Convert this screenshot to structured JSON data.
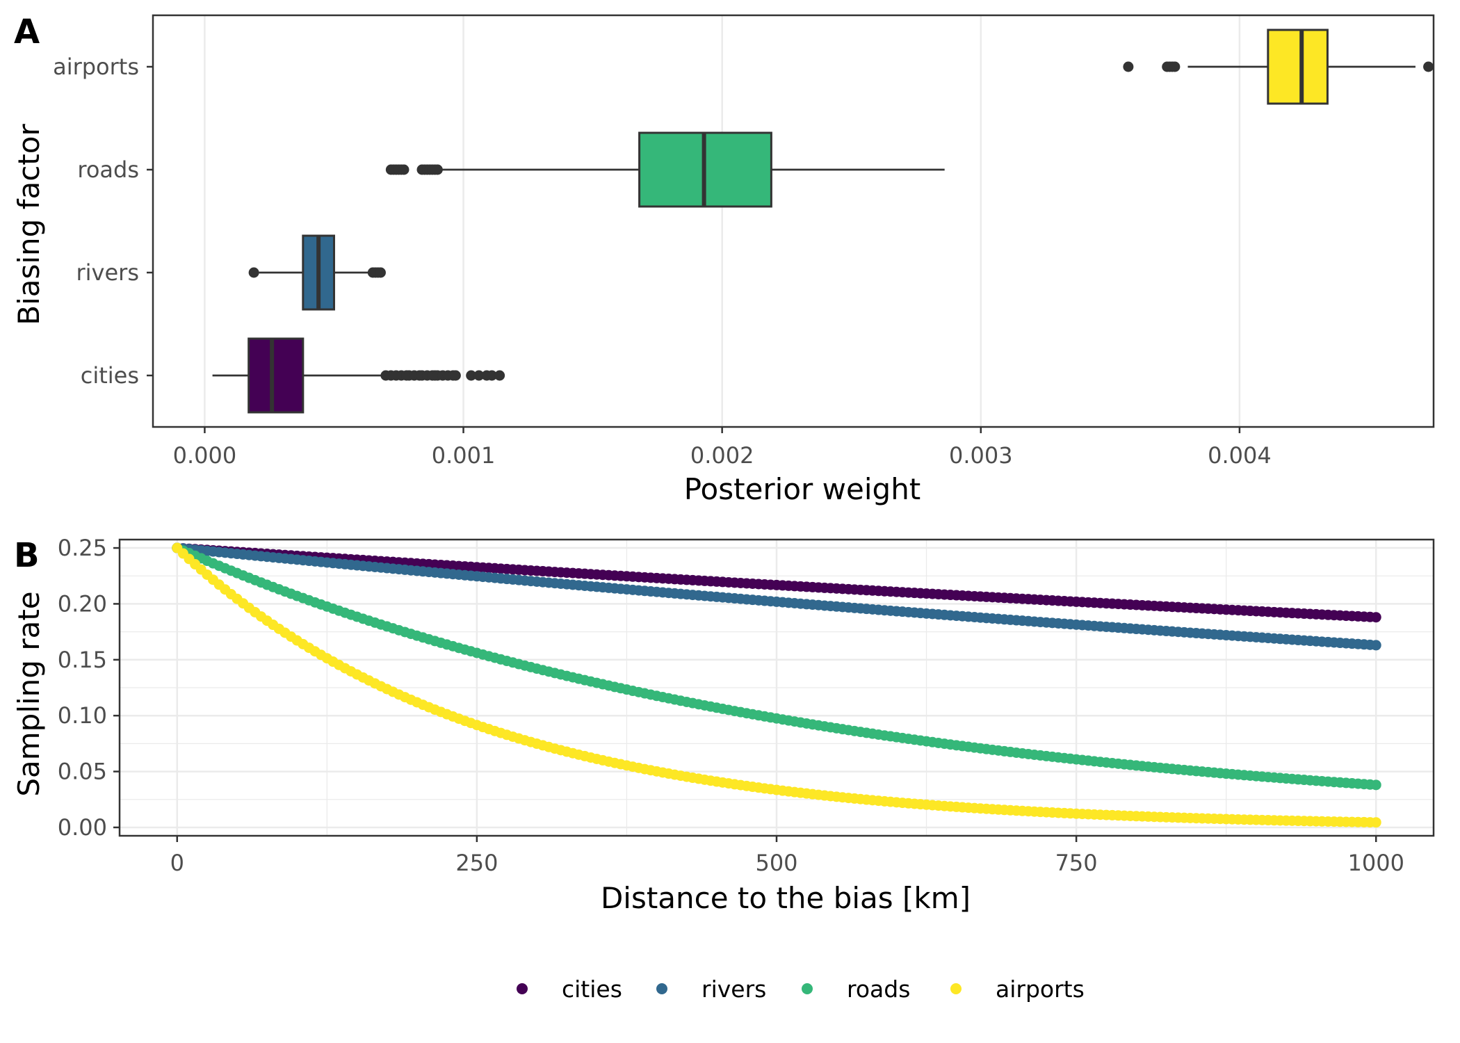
{
  "chart_data": [
    {
      "panel": "A",
      "type": "boxplot",
      "orientation": "horizontal",
      "xlabel": "Posterior weight",
      "ylabel": "Biasing factor",
      "xlim": [
        -0.0002,
        0.00475
      ],
      "xticks": [
        "0.000",
        "0.001",
        "0.002",
        "0.003",
        "0.004"
      ],
      "xtick_values": [
        0,
        0.001,
        0.002,
        0.003,
        0.004
      ],
      "grid": true,
      "categories": [
        "cities",
        "rivers",
        "roads",
        "airports"
      ],
      "boxes": [
        {
          "name": "cities",
          "color": "#440154",
          "whisker_low": 3e-05,
          "q1": 0.00017,
          "median": 0.00026,
          "q3": 0.00038,
          "whisker_high": 0.00068,
          "outliers": [
            0.0007,
            0.00072,
            0.00074,
            0.00076,
            0.00078,
            0.00079,
            0.00081,
            0.00083,
            0.00084,
            0.00086,
            0.00088,
            0.00089,
            0.0009,
            0.00092,
            0.00094,
            0.00096,
            0.00097,
            0.00103,
            0.00106,
            0.00109,
            0.00111,
            0.00114
          ]
        },
        {
          "name": "rivers",
          "color": "#31688E",
          "whisker_low": 0.00021,
          "q1": 0.00038,
          "median": 0.00044,
          "q3": 0.0005,
          "whisker_high": 0.00065,
          "outliers": [
            0.00019,
            0.00065,
            0.00066,
            0.00067,
            0.00068
          ]
        },
        {
          "name": "roads",
          "color": "#35B779",
          "whisker_low": 0.0009,
          "q1": 0.00168,
          "median": 0.00193,
          "q3": 0.00219,
          "whisker_high": 0.00286,
          "outliers": [
            0.00072,
            0.00073,
            0.00074,
            0.00075,
            0.00076,
            0.00077,
            0.00084,
            0.00085,
            0.00086,
            0.00087,
            0.00088,
            0.00089,
            0.0009
          ]
        },
        {
          "name": "airports",
          "color": "#FDE725",
          "whisker_low": 0.0038,
          "q1": 0.00411,
          "median": 0.00424,
          "q3": 0.00434,
          "whisker_high": 0.00468,
          "outliers": [
            0.00357,
            0.00372,
            0.00373,
            0.00374,
            0.00375,
            0.00473
          ]
        }
      ]
    },
    {
      "panel": "B",
      "type": "scatter",
      "xlabel": "Distance to the bias [km]",
      "ylabel": "Sampling rate",
      "xlim": [
        -48,
        1048
      ],
      "ylim": [
        -0.0075,
        0.2575
      ],
      "xticks": [
        "0",
        "250",
        "500",
        "750",
        "1000"
      ],
      "xtick_values": [
        0,
        250,
        500,
        750,
        1000
      ],
      "yticks": [
        "0.00",
        "0.05",
        "0.10",
        "0.15",
        "0.20",
        "0.25"
      ],
      "ytick_values": [
        0,
        0.05,
        0.1,
        0.15,
        0.2,
        0.25
      ],
      "grid": true,
      "x_start": 0,
      "x_end": 1000,
      "x_step": 5,
      "y_at_zero": 0.25,
      "series": [
        {
          "name": "cities",
          "color": "#440154",
          "y_at_1000": 0.188
        },
        {
          "name": "rivers",
          "color": "#31688E",
          "y_at_1000": 0.163
        },
        {
          "name": "roads",
          "color": "#35B779",
          "y_at_1000": 0.038
        },
        {
          "name": "airports",
          "color": "#FDE725",
          "y_at_1000": 0.0045
        }
      ],
      "legend_position": "bottom"
    }
  ]
}
